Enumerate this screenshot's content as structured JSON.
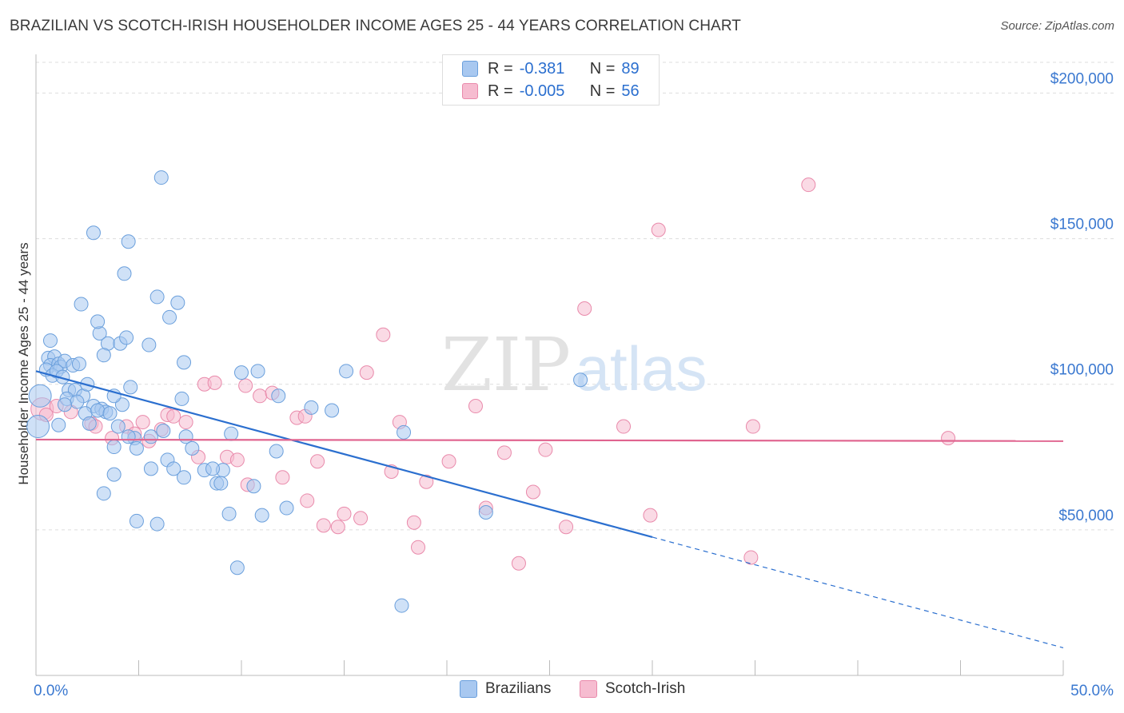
{
  "header": {
    "title": "BRAZILIAN VS SCOTCH-IRISH HOUSEHOLDER INCOME AGES 25 - 44 YEARS CORRELATION CHART",
    "source": "Source: ZipAtlas.com"
  },
  "watermark": {
    "part1": "ZIP",
    "part2": "atlas"
  },
  "legend_top": [
    {
      "r_label": "R =",
      "r_value": "-0.381",
      "n_label": "N =",
      "n_value": "89"
    },
    {
      "r_label": "R =",
      "r_value": "-0.005",
      "n_label": "N =",
      "n_value": "56"
    }
  ],
  "legend_bottom": [
    "Brazilians",
    "Scotch-Irish"
  ],
  "colors": {
    "brazilians_fill": "#a8c8f0",
    "brazilians_stroke": "#6a9fdc",
    "brazilians_line": "#2b6fcf",
    "scotch_fill": "#f6bcd0",
    "scotch_stroke": "#e98aab",
    "scotch_line": "#e0648f",
    "tick_text": "#3a78d0",
    "grid": "#dddddd"
  },
  "chart_data": {
    "type": "scatter",
    "title": "BRAZILIAN VS SCOTCH-IRISH HOUSEHOLDER INCOME AGES 25 - 44 YEARS CORRELATION CHART",
    "xlabel": "",
    "ylabel": "Householder Income Ages 25 - 44 years",
    "xlim": [
      0,
      50
    ],
    "ylim": [
      0,
      210000
    ],
    "x_tick_labels": [
      "0.0%",
      "50.0%"
    ],
    "y_ticks": [
      50000,
      100000,
      150000,
      200000
    ],
    "y_tick_labels": [
      "$50,000",
      "$100,000",
      "$150,000",
      "$200,000"
    ],
    "grid": true,
    "legend_position": "top-center",
    "series": [
      {
        "name": "Brazilians",
        "r": -0.381,
        "n": 89,
        "trend": {
          "x_start": 0,
          "y_start": 104500,
          "x_solid_end": 30,
          "y_solid_end": 47500,
          "x_end": 50,
          "y_end": 9500
        },
        "points": [
          [
            0.6,
            109000
          ],
          [
            0.9,
            109500
          ],
          [
            0.7,
            106500
          ],
          [
            1.1,
            107000
          ],
          [
            1.2,
            106000
          ],
          [
            1.4,
            108000
          ],
          [
            0.5,
            105000
          ],
          [
            0.8,
            103000
          ],
          [
            1.0,
            104500
          ],
          [
            1.3,
            102500
          ],
          [
            1.8,
            106500
          ],
          [
            2.1,
            107000
          ],
          [
            0.7,
            115000
          ],
          [
            1.6,
            98000
          ],
          [
            1.9,
            98000
          ],
          [
            2.3,
            96000
          ],
          [
            1.5,
            95000
          ],
          [
            2.0,
            94000
          ],
          [
            2.8,
            92500
          ],
          [
            3.2,
            91500
          ],
          [
            3.4,
            90500
          ],
          [
            2.4,
            90000
          ],
          [
            3.0,
            91000
          ],
          [
            3.6,
            90000
          ],
          [
            4.2,
            93000
          ],
          [
            4.6,
            99000
          ],
          [
            4.0,
            85500
          ],
          [
            4.8,
            81500
          ],
          [
            5.6,
            82000
          ],
          [
            6.2,
            84000
          ],
          [
            7.3,
            82000
          ],
          [
            2.2,
            127500
          ],
          [
            3.1,
            117500
          ],
          [
            3.0,
            121500
          ],
          [
            3.5,
            114000
          ],
          [
            4.1,
            114000
          ],
          [
            4.4,
            116000
          ],
          [
            5.5,
            113500
          ],
          [
            4.3,
            138000
          ],
          [
            2.8,
            152000
          ],
          [
            4.5,
            149000
          ],
          [
            6.1,
            171000
          ],
          [
            5.9,
            130000
          ],
          [
            6.5,
            123000
          ],
          [
            6.9,
            128000
          ],
          [
            7.2,
            107500
          ],
          [
            7.1,
            95000
          ],
          [
            3.3,
            110000
          ],
          [
            1.1,
            86000
          ],
          [
            2.6,
            86500
          ],
          [
            3.8,
            78500
          ],
          [
            4.9,
            78000
          ],
          [
            4.5,
            82000
          ],
          [
            5.6,
            71000
          ],
          [
            3.8,
            69000
          ],
          [
            7.6,
            78000
          ],
          [
            6.4,
            74000
          ],
          [
            6.7,
            71000
          ],
          [
            7.2,
            68000
          ],
          [
            8.2,
            70500
          ],
          [
            8.8,
            66000
          ],
          [
            9.1,
            70500
          ],
          [
            8.6,
            71000
          ],
          [
            9.0,
            66000
          ],
          [
            9.5,
            83000
          ],
          [
            9.4,
            55500
          ],
          [
            10.6,
            65000
          ],
          [
            11.0,
            55000
          ],
          [
            11.7,
            77000
          ],
          [
            12.2,
            57500
          ],
          [
            3.3,
            62500
          ],
          [
            4.9,
            53000
          ],
          [
            5.9,
            52000
          ],
          [
            10.0,
            104000
          ],
          [
            10.8,
            104500
          ],
          [
            11.8,
            96000
          ],
          [
            13.4,
            92000
          ],
          [
            14.4,
            91000
          ],
          [
            15.1,
            104500
          ],
          [
            9.8,
            37000
          ],
          [
            17.8,
            24000
          ],
          [
            17.9,
            83500
          ],
          [
            21.9,
            56000
          ],
          [
            26.5,
            101500
          ],
          [
            0.2,
            96000
          ],
          [
            0.1,
            85500
          ],
          [
            2.5,
            100000
          ],
          [
            1.4,
            93000
          ],
          [
            3.8,
            96000
          ]
        ]
      },
      {
        "name": "Scotch-Irish",
        "r": -0.005,
        "n": 56,
        "trend": {
          "x_start": 0,
          "y_start": 81000,
          "x_solid_end": 50,
          "y_solid_end": 80500,
          "x_end": 50,
          "y_end": 80500
        },
        "points": [
          [
            0.3,
            91500
          ],
          [
            0.5,
            89500
          ],
          [
            1.0,
            92500
          ],
          [
            1.7,
            90500
          ],
          [
            2.7,
            86500
          ],
          [
            2.9,
            85500
          ],
          [
            3.7,
            81500
          ],
          [
            4.4,
            85500
          ],
          [
            4.8,
            83000
          ],
          [
            5.2,
            87000
          ],
          [
            5.5,
            80500
          ],
          [
            6.4,
            89500
          ],
          [
            6.1,
            84500
          ],
          [
            6.7,
            89000
          ],
          [
            7.3,
            87000
          ],
          [
            7.9,
            75000
          ],
          [
            8.2,
            100000
          ],
          [
            8.7,
            100500
          ],
          [
            9.3,
            75000
          ],
          [
            9.8,
            74000
          ],
          [
            10.2,
            99500
          ],
          [
            10.3,
            65500
          ],
          [
            10.9,
            96000
          ],
          [
            11.5,
            97000
          ],
          [
            12.0,
            68000
          ],
          [
            12.7,
            88500
          ],
          [
            13.1,
            89000
          ],
          [
            13.7,
            73500
          ],
          [
            13.2,
            60000
          ],
          [
            14.0,
            51500
          ],
          [
            14.7,
            51000
          ],
          [
            15.0,
            55500
          ],
          [
            15.8,
            54000
          ],
          [
            16.1,
            104000
          ],
          [
            16.9,
            117000
          ],
          [
            17.3,
            70000
          ],
          [
            17.7,
            87000
          ],
          [
            18.4,
            52500
          ],
          [
            18.6,
            44000
          ],
          [
            19.0,
            66500
          ],
          [
            20.1,
            73500
          ],
          [
            21.4,
            92500
          ],
          [
            21.9,
            57500
          ],
          [
            22.8,
            76500
          ],
          [
            23.5,
            38500
          ],
          [
            24.2,
            63000
          ],
          [
            24.8,
            77500
          ],
          [
            25.8,
            51000
          ],
          [
            26.7,
            126000
          ],
          [
            28.6,
            85500
          ],
          [
            29.9,
            55000
          ],
          [
            30.3,
            153000
          ],
          [
            34.8,
            40500
          ],
          [
            34.9,
            85500
          ],
          [
            37.6,
            168500
          ],
          [
            44.4,
            81500
          ]
        ]
      }
    ]
  }
}
